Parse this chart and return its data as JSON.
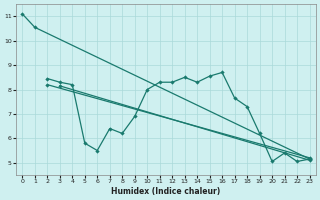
{
  "background_color": "#cff0f0",
  "grid_color": "#aadada",
  "line_color": "#1a7a6e",
  "xlabel": "Humidex (Indice chaleur)",
  "xlim": [
    -0.5,
    23.5
  ],
  "ylim": [
    4.5,
    11.5
  ],
  "xticks": [
    0,
    1,
    2,
    3,
    4,
    5,
    6,
    7,
    8,
    9,
    10,
    11,
    12,
    13,
    14,
    15,
    16,
    17,
    18,
    19,
    20,
    21,
    22,
    23
  ],
  "yticks": [
    5,
    6,
    7,
    8,
    9,
    10,
    11
  ],
  "series": {
    "line_steep": {
      "x": [
        0,
        1,
        23
      ],
      "y": [
        11.1,
        10.55,
        5.15
      ]
    },
    "line_wavy": {
      "x": [
        2,
        3,
        4,
        5,
        6,
        7,
        8,
        9,
        10,
        11,
        12,
        13,
        14,
        15,
        16,
        17,
        18,
        19,
        20,
        21,
        22,
        23
      ],
      "y": [
        8.45,
        8.3,
        8.2,
        5.8,
        5.5,
        6.4,
        6.2,
        6.9,
        8.0,
        8.3,
        8.3,
        8.5,
        8.3,
        8.55,
        8.7,
        7.65,
        7.3,
        6.2,
        5.05,
        5.4,
        5.05,
        5.15
      ]
    },
    "line_diag1": {
      "x": [
        3,
        23
      ],
      "y": [
        8.15,
        5.1
      ]
    },
    "line_diag2": {
      "x": [
        2,
        23
      ],
      "y": [
        8.2,
        5.2
      ]
    }
  }
}
